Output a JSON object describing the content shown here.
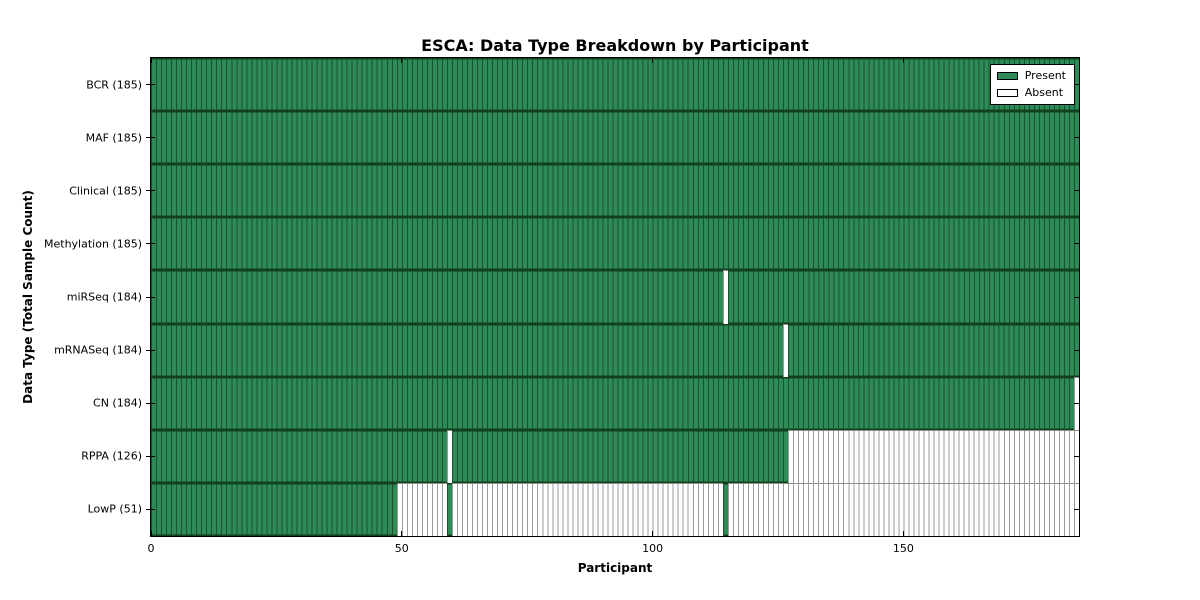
{
  "colors": {
    "present_fill": "#2e8b57",
    "present_edge": "#19522f",
    "absent_fill": "#ffffff",
    "absent_edge": "#9b9b9b",
    "axis": "#000000"
  },
  "chart_data": {
    "type": "heatmap",
    "title": "ESCA: Data Type Breakdown by Participant",
    "xlabel": "Participant",
    "ylabel": "Data Type (Total Sample Count)",
    "x_max": 185,
    "x_ticks": [
      0,
      50,
      100,
      150
    ],
    "x_tick_labels": [
      "0",
      "50",
      "100",
      "150"
    ],
    "grid": false,
    "legend": {
      "position": "upper right",
      "items": [
        {
          "label": "Present",
          "state": "present"
        },
        {
          "label": "Absent",
          "state": "absent"
        }
      ]
    },
    "rows": [
      {
        "name": "BCR",
        "label": "BCR (185)",
        "total": 185,
        "present_segments": [
          [
            0,
            185
          ]
        ]
      },
      {
        "name": "MAF",
        "label": "MAF (185)",
        "total": 185,
        "present_segments": [
          [
            0,
            185
          ]
        ]
      },
      {
        "name": "Clinical",
        "label": "Clinical (185)",
        "total": 185,
        "present_segments": [
          [
            0,
            185
          ]
        ]
      },
      {
        "name": "Methylation",
        "label": "Methylation (185)",
        "total": 185,
        "present_segments": [
          [
            0,
            185
          ]
        ]
      },
      {
        "name": "miRSeq",
        "label": "miRSeq (184)",
        "total": 184,
        "present_segments": [
          [
            0,
            114
          ],
          [
            115,
            70
          ]
        ]
      },
      {
        "name": "mRNASeq",
        "label": "mRNASeq (184)",
        "total": 184,
        "present_segments": [
          [
            0,
            126
          ],
          [
            127,
            58
          ]
        ]
      },
      {
        "name": "CN",
        "label": "CN (184)",
        "total": 184,
        "present_segments": [
          [
            0,
            184
          ]
        ]
      },
      {
        "name": "RPPA",
        "label": "RPPA (126)",
        "total": 126,
        "present_segments": [
          [
            0,
            59
          ],
          [
            60,
            67
          ]
        ]
      },
      {
        "name": "LowP",
        "label": "LowP (51)",
        "total": 51,
        "present_segments": [
          [
            0,
            49
          ],
          [
            59,
            1
          ],
          [
            114,
            1
          ]
        ]
      }
    ]
  }
}
